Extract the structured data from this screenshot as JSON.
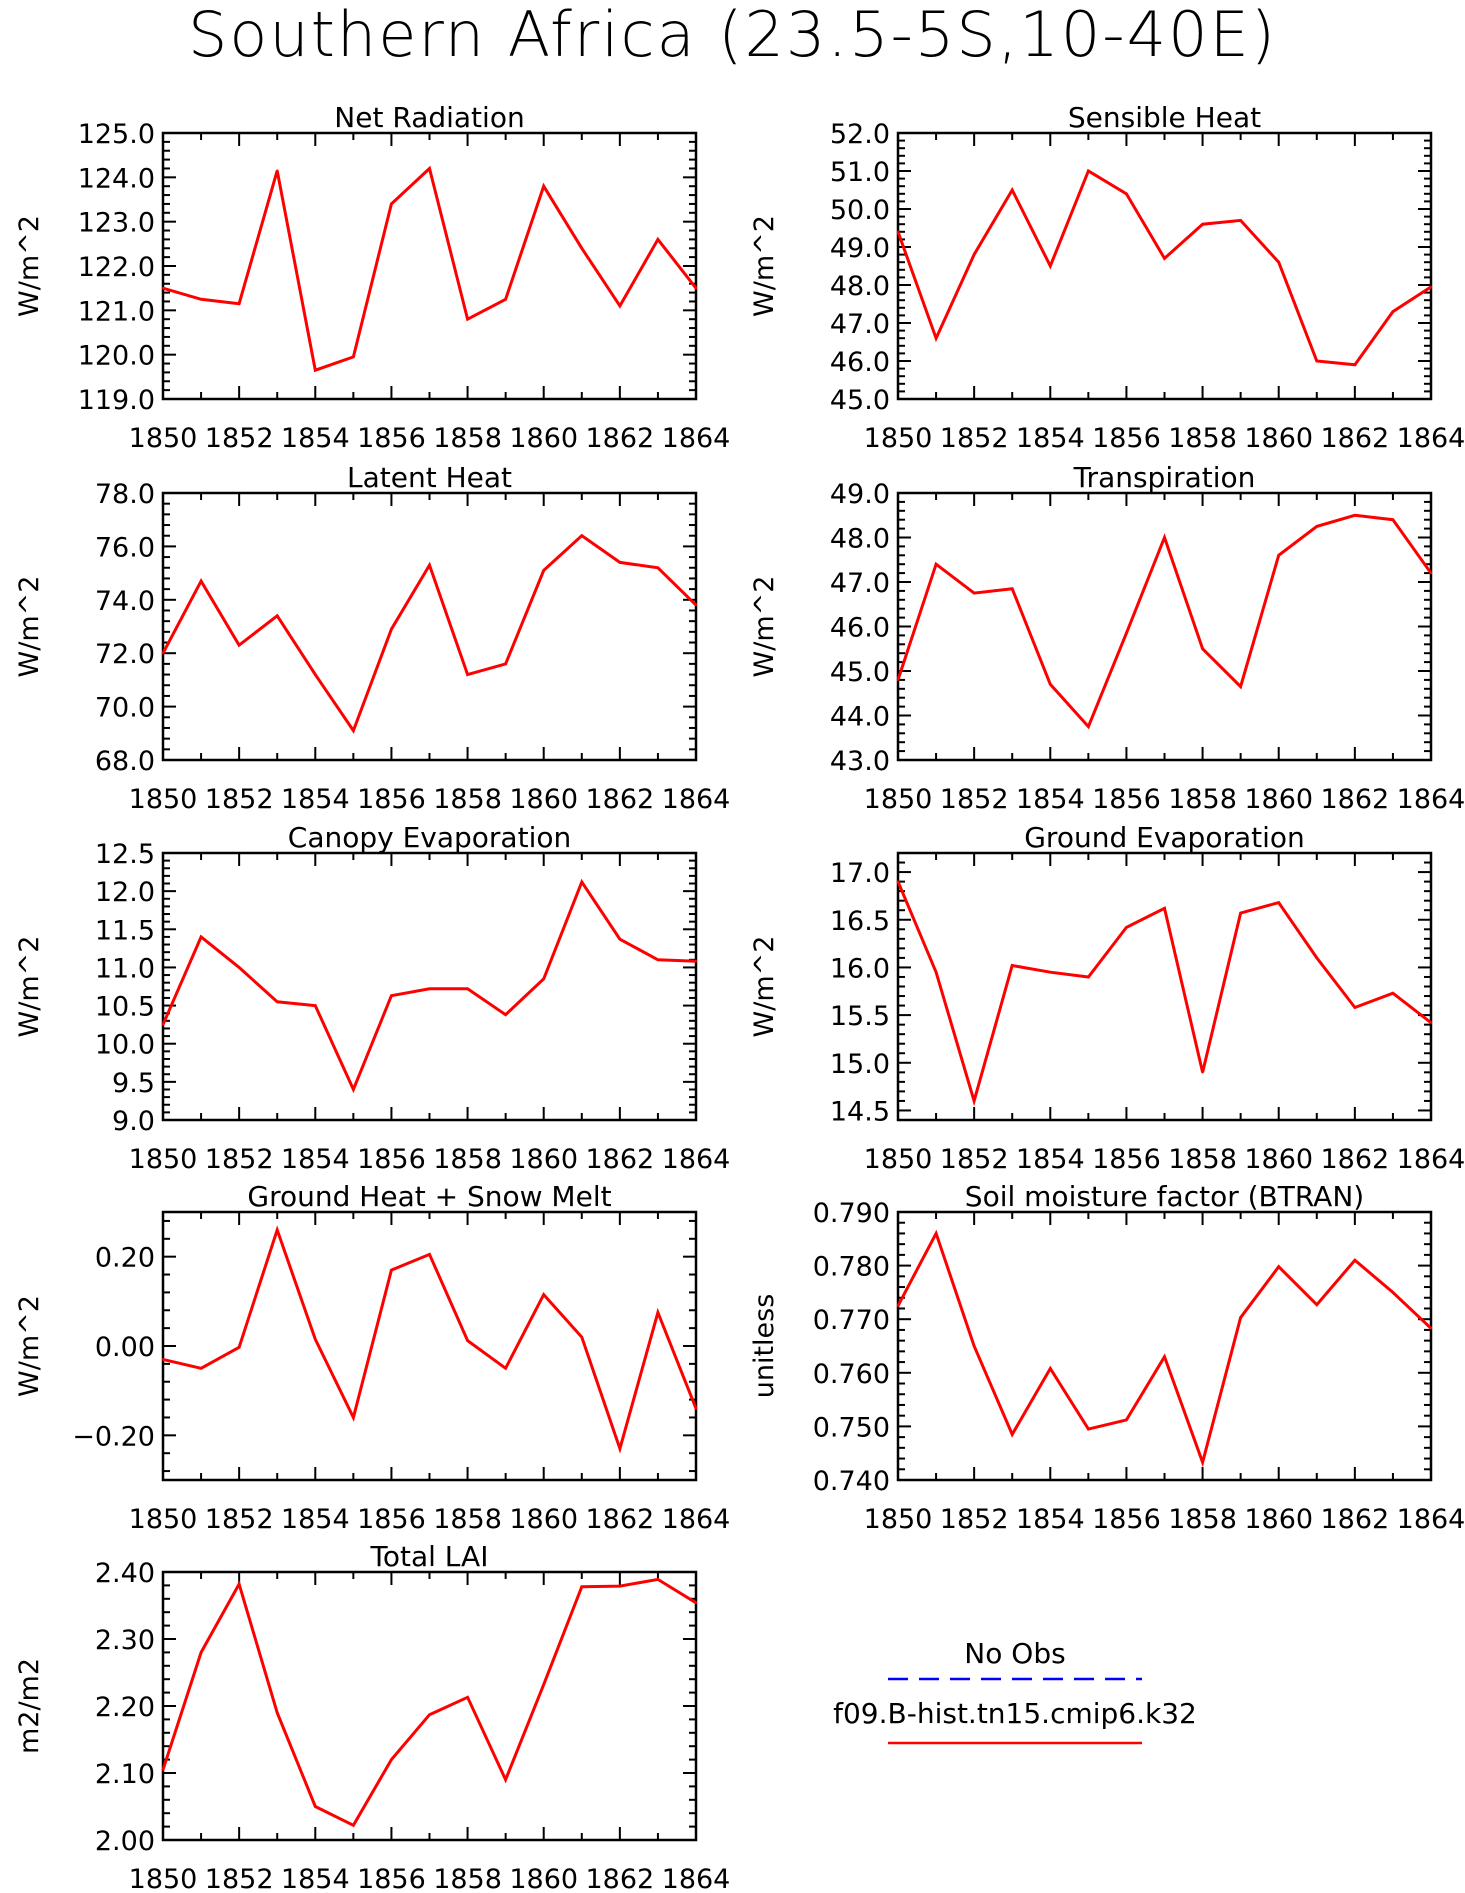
{
  "figure": {
    "title": "Southern Africa (23.5-5S,10-40E)",
    "series_color": "#ff0000",
    "obs_color": "#0000ff"
  },
  "legend": {
    "obs_label": "No Obs",
    "model_label": "f09.B-hist.tn15.cmip6.k32"
  },
  "chart_data": [
    {
      "type": "line",
      "title": "Net Radiation",
      "xlabel": "",
      "ylabel": "W/m^2",
      "xlim": [
        1850,
        1864
      ],
      "ylim": [
        119,
        125
      ],
      "xticks": [
        1850,
        1852,
        1854,
        1856,
        1858,
        1860,
        1862,
        1864
      ],
      "yticks": [
        119,
        120,
        121,
        122,
        123,
        124,
        125
      ],
      "ydec": 1,
      "x": [
        1850,
        1851,
        1852,
        1853,
        1854,
        1855,
        1856,
        1857,
        1858,
        1859,
        1860,
        1861,
        1862,
        1863,
        1864
      ],
      "series": [
        {
          "values": [
            121.5,
            121.25,
            121.15,
            124.15,
            119.65,
            119.95,
            123.4,
            124.2,
            120.8,
            121.25,
            123.8,
            122.4,
            121.1,
            122.6,
            121.5
          ]
        }
      ]
    },
    {
      "type": "line",
      "title": "Sensible Heat",
      "xlabel": "",
      "ylabel": "W/m^2",
      "xlim": [
        1850,
        1864
      ],
      "ylim": [
        45,
        52
      ],
      "xticks": [
        1850,
        1852,
        1854,
        1856,
        1858,
        1860,
        1862,
        1864
      ],
      "yticks": [
        45,
        46,
        47,
        48,
        49,
        50,
        51,
        52
      ],
      "ydec": 1,
      "x": [
        1850,
        1851,
        1852,
        1853,
        1854,
        1855,
        1856,
        1857,
        1858,
        1859,
        1860,
        1861,
        1862,
        1863,
        1864
      ],
      "series": [
        {
          "values": [
            49.4,
            46.6,
            48.8,
            50.5,
            48.5,
            51.0,
            50.4,
            48.7,
            49.6,
            49.7,
            48.6,
            46.0,
            45.9,
            47.3,
            47.95
          ]
        }
      ]
    },
    {
      "type": "line",
      "title": "Latent Heat",
      "xlabel": "",
      "ylabel": "W/m^2",
      "xlim": [
        1850,
        1864
      ],
      "ylim": [
        68,
        78
      ],
      "xticks": [
        1850,
        1852,
        1854,
        1856,
        1858,
        1860,
        1862,
        1864
      ],
      "yticks": [
        68,
        70,
        72,
        74,
        76,
        78
      ],
      "ydec": 1,
      "x": [
        1850,
        1851,
        1852,
        1853,
        1854,
        1855,
        1856,
        1857,
        1858,
        1859,
        1860,
        1861,
        1862,
        1863,
        1864
      ],
      "series": [
        {
          "values": [
            72.0,
            74.7,
            72.3,
            73.4,
            71.2,
            69.1,
            72.9,
            75.3,
            71.2,
            71.6,
            75.1,
            76.4,
            75.4,
            75.2,
            73.8
          ]
        }
      ]
    },
    {
      "type": "line",
      "title": "Transpiration",
      "xlabel": "",
      "ylabel": "W/m^2",
      "xlim": [
        1850,
        1864
      ],
      "ylim": [
        43,
        49
      ],
      "xticks": [
        1850,
        1852,
        1854,
        1856,
        1858,
        1860,
        1862,
        1864
      ],
      "yticks": [
        43,
        44,
        45,
        46,
        47,
        48,
        49
      ],
      "ydec": 1,
      "x": [
        1850,
        1851,
        1852,
        1853,
        1854,
        1855,
        1856,
        1857,
        1858,
        1859,
        1860,
        1861,
        1862,
        1863,
        1864
      ],
      "series": [
        {
          "values": [
            44.8,
            47.4,
            46.75,
            46.85,
            44.7,
            43.75,
            45.85,
            48.0,
            45.5,
            44.65,
            47.6,
            48.25,
            48.5,
            48.4,
            47.2
          ]
        }
      ]
    },
    {
      "type": "line",
      "title": "Canopy Evaporation",
      "xlabel": "",
      "ylabel": "W/m^2",
      "xlim": [
        1850,
        1864
      ],
      "ylim": [
        9,
        12.5
      ],
      "xticks": [
        1850,
        1852,
        1854,
        1856,
        1858,
        1860,
        1862,
        1864
      ],
      "yticks": [
        9,
        9.5,
        10,
        10.5,
        11,
        11.5,
        12,
        12.5
      ],
      "ydec": 1,
      "x": [
        1850,
        1851,
        1852,
        1853,
        1854,
        1855,
        1856,
        1857,
        1858,
        1859,
        1860,
        1861,
        1862,
        1863,
        1864
      ],
      "series": [
        {
          "values": [
            10.25,
            11.4,
            11.0,
            10.55,
            10.5,
            9.4,
            10.63,
            10.72,
            10.72,
            10.38,
            10.85,
            12.12,
            11.37,
            11.1,
            11.08
          ]
        }
      ]
    },
    {
      "type": "line",
      "title": "Ground Evaporation",
      "xlabel": "",
      "ylabel": "W/m^2",
      "xlim": [
        1850,
        1864
      ],
      "ylim": [
        14.4,
        17.2
      ],
      "xticks": [
        1850,
        1852,
        1854,
        1856,
        1858,
        1860,
        1862,
        1864
      ],
      "yticks": [
        14.5,
        15,
        15.5,
        16,
        16.5,
        17
      ],
      "ydec": 1,
      "x": [
        1850,
        1851,
        1852,
        1853,
        1854,
        1855,
        1856,
        1857,
        1858,
        1859,
        1860,
        1861,
        1862,
        1863,
        1864
      ],
      "series": [
        {
          "values": [
            16.9,
            15.95,
            14.6,
            16.02,
            15.95,
            15.9,
            16.42,
            16.62,
            14.9,
            16.57,
            16.68,
            16.1,
            15.58,
            15.73,
            15.42
          ]
        }
      ]
    },
    {
      "type": "line",
      "title": "Ground Heat + Snow Melt",
      "xlabel": "",
      "ylabel": "W/m^2",
      "xlim": [
        1850,
        1864
      ],
      "ylim": [
        -0.3,
        0.3
      ],
      "xticks": [
        1850,
        1852,
        1854,
        1856,
        1858,
        1860,
        1862,
        1864
      ],
      "yticks": [
        -0.2,
        0,
        0.2
      ],
      "ydec": 2,
      "x": [
        1850,
        1851,
        1852,
        1853,
        1854,
        1855,
        1856,
        1857,
        1858,
        1859,
        1860,
        1861,
        1862,
        1863,
        1864
      ],
      "series": [
        {
          "values": [
            -0.03,
            -0.05,
            -0.003,
            0.26,
            0.015,
            -0.16,
            0.17,
            0.205,
            0.012,
            -0.05,
            0.115,
            0.02,
            -0.23,
            0.075,
            -0.14
          ]
        }
      ]
    },
    {
      "type": "line",
      "title": "Soil moisture factor (BTRAN)",
      "xlabel": "",
      "ylabel": "unitless",
      "xlim": [
        1850,
        1864
      ],
      "ylim": [
        0.74,
        0.79
      ],
      "xticks": [
        1850,
        1852,
        1854,
        1856,
        1858,
        1860,
        1862,
        1864
      ],
      "yticks": [
        0.74,
        0.75,
        0.76,
        0.77,
        0.78,
        0.79
      ],
      "ydec": 3,
      "x": [
        1850,
        1851,
        1852,
        1853,
        1854,
        1855,
        1856,
        1857,
        1858,
        1859,
        1860,
        1861,
        1862,
        1863,
        1864
      ],
      "series": [
        {
          "values": [
            0.7725,
            0.786,
            0.765,
            0.7485,
            0.7608,
            0.7495,
            0.7512,
            0.763,
            0.7433,
            0.7703,
            0.7798,
            0.7727,
            0.781,
            0.775,
            0.7683
          ]
        }
      ]
    },
    {
      "type": "line",
      "title": "Total LAI",
      "xlabel": "",
      "ylabel": "m2/m2",
      "xlim": [
        1850,
        1864
      ],
      "ylim": [
        2.0,
        2.4
      ],
      "xticks": [
        1850,
        1852,
        1854,
        1856,
        1858,
        1860,
        1862,
        1864
      ],
      "yticks": [
        2.0,
        2.1,
        2.2,
        2.3,
        2.4
      ],
      "ydec": 2,
      "x": [
        1850,
        1851,
        1852,
        1853,
        1854,
        1855,
        1856,
        1857,
        1858,
        1859,
        1860,
        1861,
        1862,
        1863,
        1864
      ],
      "series": [
        {
          "values": [
            2.105,
            2.28,
            2.382,
            2.19,
            2.05,
            2.022,
            2.12,
            2.187,
            2.213,
            2.09,
            2.232,
            2.378,
            2.379,
            2.389,
            2.354
          ]
        }
      ]
    }
  ]
}
